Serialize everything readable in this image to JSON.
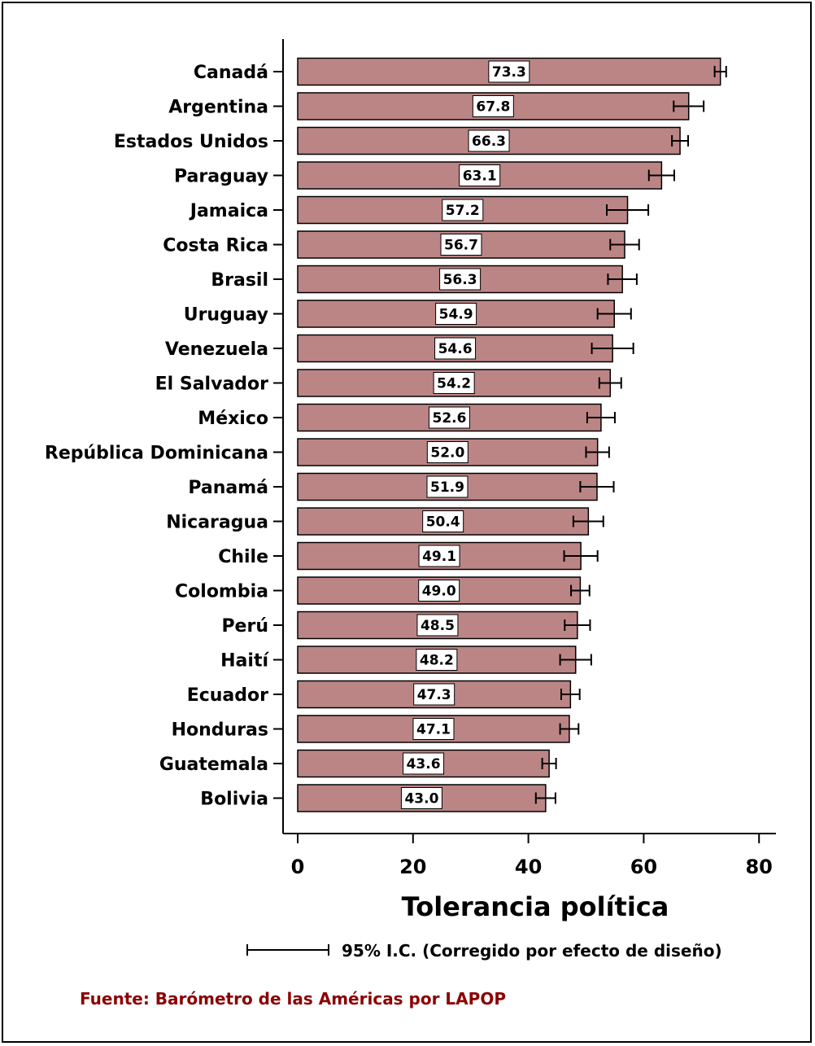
{
  "chart_data": {
    "type": "bar",
    "orientation": "horizontal",
    "categories": [
      "Canadá",
      "Argentina",
      "Estados Unidos",
      "Paraguay",
      "Jamaica",
      "Costa Rica",
      "Brasil",
      "Uruguay",
      "Venezuela",
      "El Salvador",
      "México",
      "República Dominicana",
      "Panamá",
      "Nicaragua",
      "Chile",
      "Colombia",
      "Perú",
      "Haití",
      "Ecuador",
      "Honduras",
      "Guatemala",
      "Bolivia"
    ],
    "values": [
      73.3,
      67.8,
      66.3,
      63.1,
      57.2,
      56.7,
      56.3,
      54.9,
      54.6,
      54.2,
      52.6,
      52.0,
      51.9,
      50.4,
      49.1,
      49.0,
      48.5,
      48.2,
      47.3,
      47.1,
      43.6,
      43.0
    ],
    "value_labels": [
      "73.3",
      "67.8",
      "66.3",
      "63.1",
      "57.2",
      "56.7",
      "56.3",
      "54.9",
      "54.6",
      "54.2",
      "52.6",
      "52.0",
      "51.9",
      "50.4",
      "49.1",
      "49.0",
      "48.5",
      "48.2",
      "47.3",
      "47.1",
      "43.6",
      "43.0"
    ],
    "ci_low": [
      72.3,
      65.2,
      64.9,
      60.9,
      53.6,
      54.2,
      53.8,
      52.0,
      51.0,
      52.3,
      50.2,
      50.0,
      49.0,
      47.8,
      46.2,
      47.4,
      46.3,
      45.5,
      45.7,
      45.5,
      42.4,
      41.3
    ],
    "ci_high": [
      74.3,
      70.4,
      67.7,
      65.3,
      60.8,
      59.2,
      58.8,
      57.8,
      58.2,
      56.1,
      55.0,
      54.0,
      54.8,
      53.0,
      52.0,
      50.6,
      50.7,
      50.9,
      48.9,
      48.7,
      44.8,
      44.7
    ],
    "xlabel": "Tolerancia política",
    "xlim": [
      0,
      83
    ],
    "xticks": [
      0,
      20,
      40,
      60,
      80
    ],
    "xtick_labels": [
      "0",
      "20",
      "40",
      "60",
      "80"
    ],
    "grid": false,
    "bar_color": "#bc8585",
    "bar_edge_color": "#000000",
    "legend_text": "95% I.C. (Corregido por efecto de diseño)",
    "source_text": "Fuente: Barómetro de las Américas por LAPOP",
    "source_color": "#8b0000"
  }
}
